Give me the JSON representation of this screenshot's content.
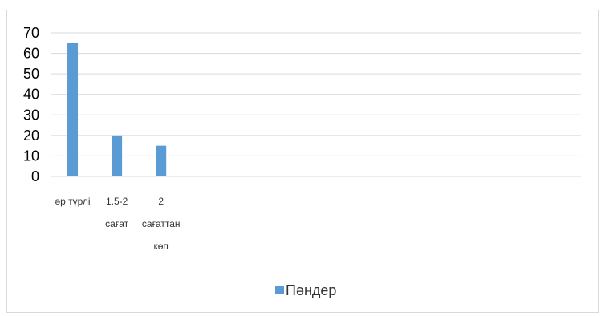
{
  "chart_data": {
    "type": "bar",
    "categories": [
      [
        "әр түрлі"
      ],
      [
        "1.5-2",
        "сағат"
      ],
      [
        "2",
        "сағаттан",
        "көп"
      ],
      [
        ""
      ],
      [
        ""
      ],
      [
        ""
      ],
      [
        ""
      ],
      [
        ""
      ],
      [
        ""
      ],
      [
        ""
      ],
      [
        ""
      ],
      [
        ""
      ]
    ],
    "series": [
      {
        "name": "Пәндер",
        "values": [
          65,
          20,
          15,
          null,
          null,
          null,
          null,
          null,
          null,
          null,
          null,
          null
        ],
        "color": "#5b9bd5"
      }
    ],
    "yticks": [
      "0",
      "10",
      "20",
      "30",
      "40",
      "50",
      "60",
      "70"
    ],
    "ylim": [
      0,
      70
    ],
    "grid": true,
    "legend_position": "bottom"
  }
}
